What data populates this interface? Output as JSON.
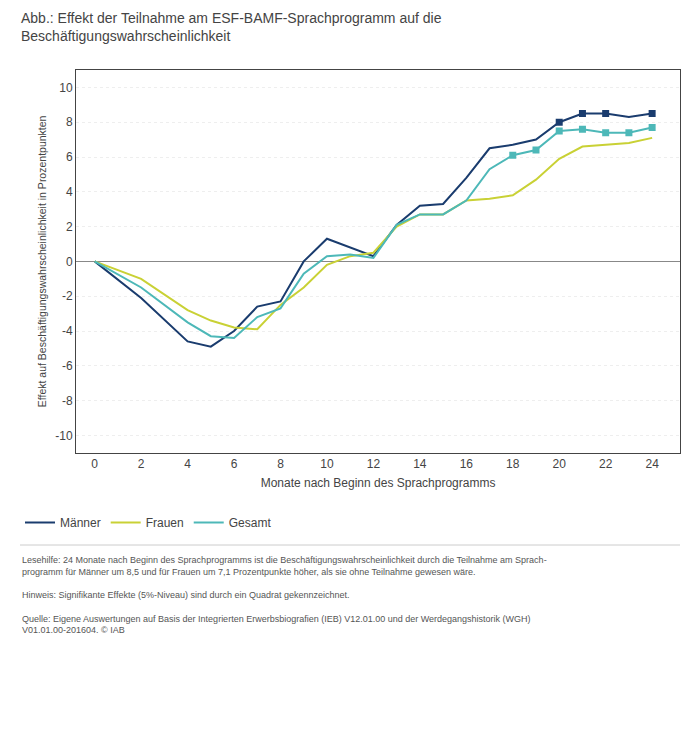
{
  "chart_data": {
    "type": "line",
    "title": "Abb.: Effekt der Teilnahme am ESF-BAMF-Sprachprogramm auf die\nBeschäftigungswahrscheinlichkeit",
    "x_label": "Monate nach Beginn des Sprachprogramms",
    "y_label": "Effekt auf Beschäftigungswahrscheinlichkeit in Prozentpunkten",
    "x": [
      0,
      2,
      4,
      5,
      6,
      7,
      8,
      9,
      10,
      11,
      12,
      13,
      14,
      15,
      16,
      17,
      18,
      19,
      20,
      21,
      22,
      23,
      24
    ],
    "series": [
      {
        "name": "Männer",
        "color": "#1a3c6e",
        "marker": "square",
        "marked_x": [
          20,
          21,
          22,
          24
        ],
        "values": [
          0,
          -2.1,
          -4.6,
          -4.9,
          -4.0,
          -2.6,
          -2.3,
          0.0,
          1.3,
          0.8,
          0.3,
          2.1,
          3.2,
          3.3,
          4.8,
          6.5,
          6.7,
          7.0,
          8.0,
          8.5,
          8.5,
          8.3,
          8.5
        ]
      },
      {
        "name": "Frauen",
        "color": "#c9d135",
        "values": [
          0,
          -1.0,
          -2.8,
          -3.4,
          -3.8,
          -3.9,
          -2.5,
          -1.5,
          -0.2,
          0.3,
          0.5,
          2.0,
          2.7,
          2.7,
          3.5,
          3.6,
          3.8,
          4.7,
          5.9,
          6.6,
          6.7,
          6.8,
          7.1
        ]
      },
      {
        "name": "Gesamt",
        "color": "#4db8b8",
        "marker": "square",
        "marked_x": [
          18,
          19,
          20,
          21,
          22,
          23,
          24
        ],
        "values": [
          0,
          -1.5,
          -3.5,
          -4.3,
          -4.4,
          -3.2,
          -2.7,
          -0.7,
          0.3,
          0.4,
          0.2,
          2.1,
          2.7,
          2.7,
          3.5,
          5.3,
          6.1,
          6.4,
          7.5,
          7.6,
          7.4,
          7.4,
          7.7
        ]
      }
    ],
    "xlim": [
      -0.8,
      25.2
    ],
    "xticks": [
      0,
      2,
      4,
      6,
      8,
      10,
      12,
      14,
      16,
      18,
      20,
      22,
      24
    ],
    "ylim": [
      -11,
      11
    ],
    "yticks": [
      -10,
      -8,
      -6,
      -4,
      -2,
      0,
      2,
      4,
      6,
      8,
      10
    ],
    "grid": true,
    "legend": "bottom left",
    "annotations": [
      "Lesehilfe: 24 Monate nach Beginn des Sprachprogramms ist die Beschäftigungswahrscheinlichkeit durch die Teilnahme am Sprach-\nprogramm für Männer um 8,5 und für Frauen um 7,1 Prozentpunkte höher, als sie ohne Teilnahme gewesen wäre.",
      "Hinweis: Signifikante Effekte (5%-Niveau) sind durch ein Quadrat gekennzeichnet.",
      "Quelle: Eigene Auswertungen auf Basis der Integrierten Erwerbsbiografien (IEB) V12.01.00 und der Werdegangshistorik (WGH)\nV01.01.00-201604. © IAB"
    ]
  }
}
